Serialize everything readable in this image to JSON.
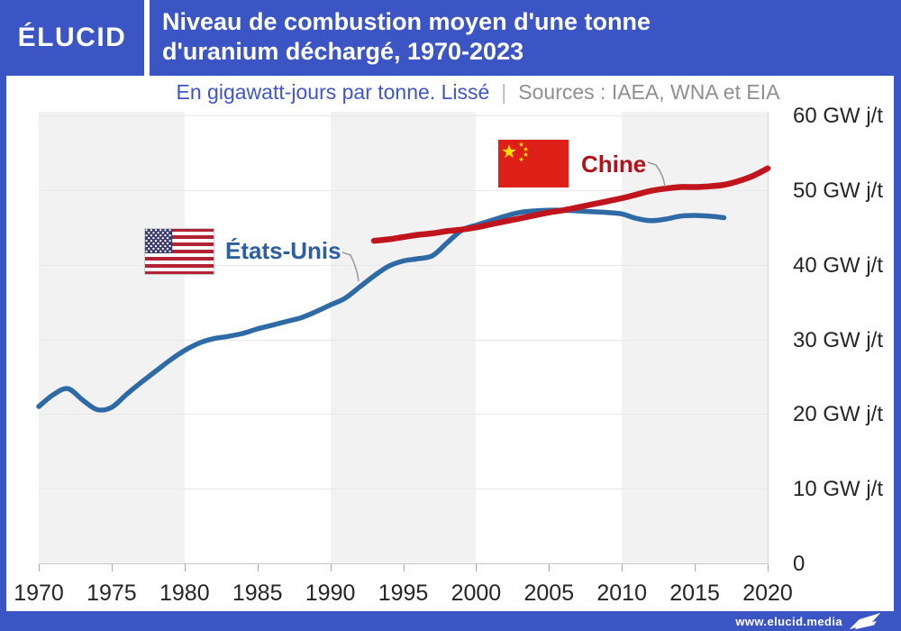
{
  "brand": {
    "logo_text": "ÉLUCID",
    "website": "www.elucid.media"
  },
  "header": {
    "title_line1": "Niveau de combustion moyen d'une tonne",
    "title_line2": "d'uranium déchargé, 1970-2023"
  },
  "subtitle": {
    "description": "En gigawatt-jours par tonne. Lissé",
    "separator": "|",
    "sources": "Sources : IAEA, WNA et EIA"
  },
  "colors": {
    "frame_blue": "#3C55C4",
    "subtitle_blue": "#4156C6",
    "source_gray": "#8F8F8F",
    "band_gray": "#F2F2F3",
    "grid_gray": "#E8E8E8",
    "axis_line": "#C9C9C9",
    "us_line": "#2E6BA6",
    "us_label": "#2B5F9E",
    "cn_line": "#C0151D",
    "cn_label": "#B3121B",
    "cn_flag_red": "#DE2018",
    "flag_star_yellow": "#FFDE00",
    "us_flag_red": "#B22234",
    "us_flag_canton": "#3C3B6E",
    "leader_gray": "#999999"
  },
  "icons": [
    "us-flag-icon",
    "cn-flag-icon",
    "elucid-flag-icon"
  ],
  "chart_data": {
    "type": "line",
    "title": "Niveau de combustion moyen d'une tonne d'uranium déchargé, 1970-2023",
    "unit": "GW j/t",
    "xlabel": "",
    "ylabel": "En gigawatt-jours par tonne",
    "xlim": [
      1970,
      2020
    ],
    "ylim": [
      0,
      60
    ],
    "grid": "horizontal",
    "shaded_decades": [
      [
        1970,
        1980
      ],
      [
        1990,
        2000
      ],
      [
        2010,
        2020
      ]
    ],
    "x_tick_labels": [
      "1970",
      "1975",
      "1980",
      "1985",
      "1990",
      "1995",
      "2000",
      "2005",
      "2010",
      "2015",
      "2020"
    ],
    "y_ticks": [
      {
        "value": 0,
        "label": "0"
      },
      {
        "value": 10,
        "label": "10 GW j/t"
      },
      {
        "value": 20,
        "label": "20 GW j/t"
      },
      {
        "value": 30,
        "label": "30 GW j/t"
      },
      {
        "value": 40,
        "label": "40 GW j/t"
      },
      {
        "value": 50,
        "label": "50 GW j/t"
      },
      {
        "value": 60,
        "label": "60 GW j/t"
      }
    ],
    "series": [
      {
        "name": "États-Unis",
        "color": "#2E6BA6",
        "stroke_width": 5.5,
        "years": [
          1970,
          1971,
          1972,
          1973,
          1974,
          1975,
          1976,
          1977,
          1978,
          1979,
          1980,
          1981,
          1982,
          1983,
          1984,
          1985,
          1986,
          1987,
          1988,
          1989,
          1990,
          1991,
          1992,
          1993,
          1994,
          1995,
          1996,
          1997,
          1998,
          1999,
          2000,
          2001,
          2002,
          2003,
          2004,
          2005,
          2006,
          2007,
          2008,
          2009,
          2010,
          2011,
          2012,
          2013,
          2014,
          2015,
          2016,
          2017
        ],
        "values": [
          21.0,
          22.6,
          23.4,
          21.9,
          20.6,
          20.9,
          22.6,
          24.2,
          25.7,
          27.2,
          28.5,
          29.5,
          30.1,
          30.4,
          30.8,
          31.4,
          31.9,
          32.4,
          32.9,
          33.7,
          34.6,
          35.5,
          37.0,
          38.5,
          39.8,
          40.5,
          40.8,
          41.2,
          42.9,
          44.6,
          45.3,
          45.9,
          46.5,
          47.0,
          47.2,
          47.3,
          47.3,
          47.2,
          47.1,
          47.0,
          46.8,
          46.2,
          45.9,
          46.1,
          46.5,
          46.6,
          46.5,
          46.3
        ]
      },
      {
        "name": "Chine",
        "color": "#C0151D",
        "stroke_width": 6.5,
        "years": [
          1993,
          1994,
          1995,
          1996,
          1997,
          1998,
          1999,
          2000,
          2001,
          2002,
          2003,
          2004,
          2005,
          2006,
          2007,
          2008,
          2009,
          2010,
          2011,
          2012,
          2013,
          2014,
          2015,
          2016,
          2017,
          2018,
          2019,
          2020
        ],
        "values": [
          43.2,
          43.4,
          43.7,
          44.0,
          44.2,
          44.5,
          44.7,
          45.0,
          45.4,
          45.8,
          46.2,
          46.6,
          47.0,
          47.3,
          47.7,
          48.1,
          48.5,
          48.9,
          49.4,
          49.9,
          50.2,
          50.4,
          50.4,
          50.5,
          50.7,
          51.2,
          51.9,
          52.9
        ]
      }
    ]
  }
}
